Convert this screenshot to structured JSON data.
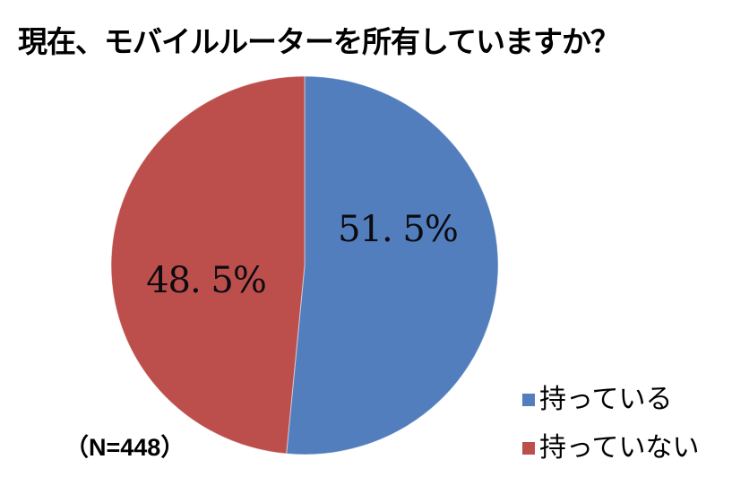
{
  "title": "現在、モバイルルーターを所有していますか？",
  "annotation": {
    "sample_size_label": "（N=448）",
    "sample_size": 448
  },
  "chart_data": {
    "type": "pie",
    "title": "現在、モバイルルーターを所有していますか？",
    "categories": [
      "持っている",
      "持っていない"
    ],
    "values": [
      51.5,
      48.5
    ],
    "display_labels": [
      "51. 5%",
      "48. 5%"
    ],
    "colors": [
      "#527EBD",
      "#BC4F4C"
    ],
    "start_angle_deg": 0,
    "direction": "clockwise",
    "legend_position": "bottom-right",
    "annotation": "（N=448）"
  }
}
